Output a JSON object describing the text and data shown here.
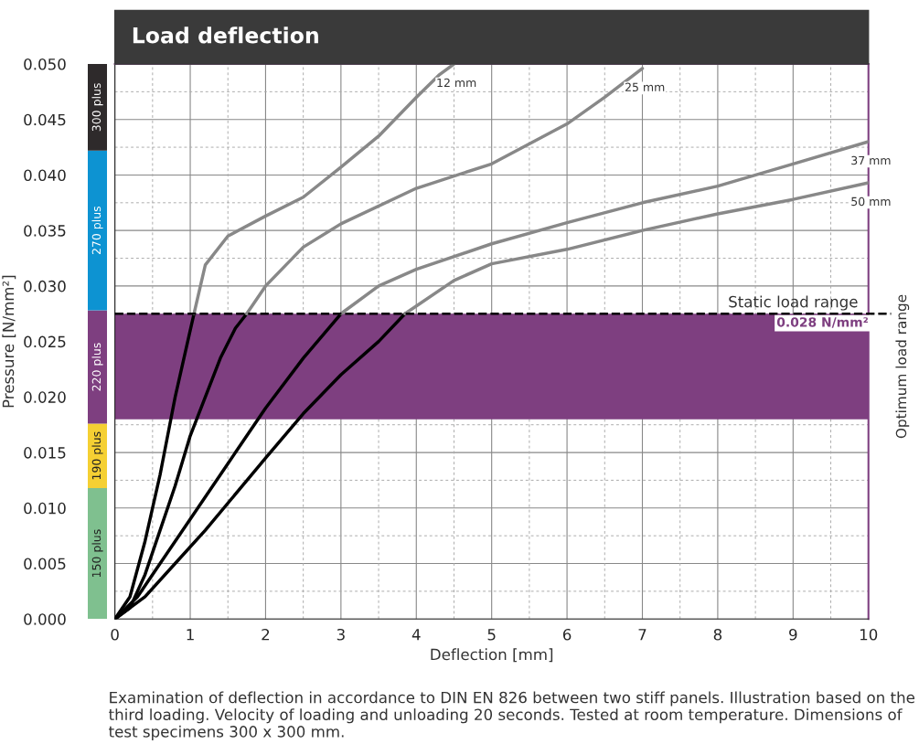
{
  "chart_data": [
    {
      "type": "line",
      "title": "Load deflection",
      "xlabel": "Deflection [mm]",
      "ylabel": "Pressure [N/mm²]",
      "xlim": [
        0,
        10
      ],
      "ylim": [
        0,
        0.05
      ],
      "xticks": [
        0,
        1,
        2,
        3,
        4,
        5,
        6,
        7,
        8,
        9,
        10
      ],
      "yticks": [
        {
          "value": 0,
          "label": "0.000"
        },
        {
          "value": 0.005,
          "label": "0.005"
        },
        {
          "value": 0.01,
          "label": "0.010"
        },
        {
          "value": 0.015,
          "label": "0.015"
        },
        {
          "value": 0.02,
          "label": "0.020"
        },
        {
          "value": 0.025,
          "label": "0.025"
        },
        {
          "value": 0.03,
          "label": "0.030"
        },
        {
          "value": 0.035,
          "label": "0.035"
        },
        {
          "value": 0.04,
          "label": "0.040"
        },
        {
          "value": 0.045,
          "label": "0.045"
        },
        {
          "value": 0.05,
          "label": "0.050"
        }
      ],
      "grid": true,
      "line_style": "solid",
      "marker": "none",
      "series": [
        {
          "color": "#000000",
          "x": [
            0,
            0.2,
            0.4,
            0.6,
            0.8,
            1.0,
            1.05
          ],
          "values": [
            0,
            0.002,
            0.007,
            0.013,
            0.02,
            0.026,
            0.0275
          ]
        },
        {
          "name": "12 mm",
          "color": "#888888",
          "x": [
            1.05,
            1.2,
            1.5,
            2.0,
            2.5,
            3.0,
            3.5,
            4.0,
            4.3,
            4.5
          ],
          "values": [
            0.0275,
            0.0319,
            0.0345,
            0.0363,
            0.038,
            0.0407,
            0.0435,
            0.047,
            0.049,
            0.05
          ]
        },
        {
          "color": "#000000",
          "x": [
            0,
            0.2,
            0.4,
            0.6,
            0.8,
            1.0,
            1.2,
            1.4,
            1.6,
            1.75
          ],
          "values": [
            0,
            0.001,
            0.004,
            0.008,
            0.012,
            0.0165,
            0.02,
            0.0235,
            0.0262,
            0.0275
          ]
        },
        {
          "name": "25 mm",
          "color": "#888888",
          "x": [
            1.75,
            2.0,
            2.5,
            3.0,
            4.0,
            5.0,
            6.0,
            6.5,
            7.0
          ],
          "values": [
            0.0275,
            0.03,
            0.0335,
            0.0356,
            0.0388,
            0.041,
            0.0446,
            0.047,
            0.0496
          ]
        },
        {
          "color": "#000000",
          "x": [
            0,
            0.3,
            0.6,
            1.0,
            1.5,
            2.0,
            2.5,
            3.0
          ],
          "values": [
            0,
            0.002,
            0.005,
            0.009,
            0.014,
            0.019,
            0.0235,
            0.0275
          ]
        },
        {
          "name": "37 mm",
          "color": "#888888",
          "x": [
            3.0,
            3.5,
            4.0,
            5.0,
            6.0,
            7.0,
            8.0,
            9.0,
            10.0
          ],
          "values": [
            0.0275,
            0.03,
            0.0315,
            0.0338,
            0.0357,
            0.0375,
            0.039,
            0.041,
            0.043
          ]
        },
        {
          "color": "#000000",
          "x": [
            0,
            0.4,
            0.8,
            1.2,
            2.0,
            2.5,
            3.0,
            3.5,
            3.85
          ],
          "values": [
            0,
            0.002,
            0.005,
            0.008,
            0.0145,
            0.0185,
            0.022,
            0.025,
            0.0275
          ]
        },
        {
          "name": "50 mm",
          "color": "#888888",
          "x": [
            3.85,
            4.5,
            5.0,
            6.0,
            7.0,
            8.0,
            9.0,
            10.0
          ],
          "values": [
            0.0275,
            0.0305,
            0.032,
            0.0333,
            0.035,
            0.0365,
            0.0378,
            0.0393
          ]
        }
      ],
      "bands": [
        {
          "axis": "y",
          "from": 0.018,
          "to": 0.0275,
          "label": "Optimum load range",
          "color": "#7e3f80"
        }
      ],
      "ref_lines": [
        {
          "axis": "y",
          "value": 0.0275,
          "label": "Static load range",
          "color": "#000000",
          "line_style": "dashed"
        }
      ],
      "annotations": [
        {
          "text": "0.028 N/mm²",
          "x": 10,
          "y": 0.0275
        },
        "Examination of deflection in accordance to DIN EN 826 between two stiff panels. Illustration based on the third loading. Velocity of loading and unloading 20 seconds. Tested at room temperature. Dimensions of test specimens 300 x 300 mm."
      ]
    },
    {
      "type": "bar",
      "stacked": true,
      "categories": [
        null
      ],
      "ylim": [
        0,
        0.05
      ],
      "tick_labels": false,
      "series": [
        {
          "name": "150 plus",
          "color": "#7fc08f",
          "values": [
            0.0118
          ]
        },
        {
          "name": "190 plus",
          "color": "#f5d033",
          "values": [
            0.0058
          ]
        },
        {
          "name": "220 plus",
          "color": "#7e3f80",
          "values": [
            0.0102
          ]
        },
        {
          "name": "270 plus",
          "color": "#0d93d2",
          "values": [
            0.0144
          ]
        },
        {
          "name": "300 plus",
          "color": "#2e2a2b",
          "values": [
            0.0078
          ]
        }
      ]
    }
  ]
}
